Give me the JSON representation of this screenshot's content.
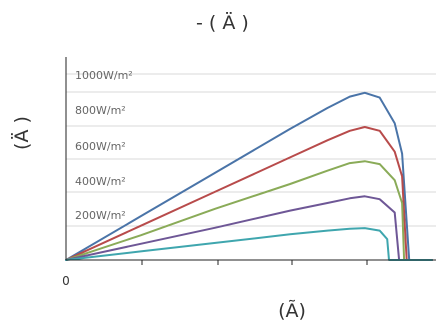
{
  "chart_data": {
    "type": "line",
    "title": "-           (    Ä )",
    "xlabel": "(Ã)",
    "ylabel": "(Ä )",
    "x_tick_labels": [
      "0"
    ],
    "xlim": [
      0,
      1.0
    ],
    "ylim": [
      0,
      1.0
    ],
    "grid": "horizontal",
    "series": [
      {
        "name": "1000W/m²",
        "color": "#4a74a8",
        "x": [
          0,
          0.2,
          0.4,
          0.6,
          0.7,
          0.76,
          0.8,
          0.84,
          0.88,
          0.9,
          0.9189,
          0.94,
          0.98
        ],
        "y": [
          0,
          0.23,
          0.46,
          0.69,
          0.8,
          0.86,
          0.88,
          0.855,
          0.72,
          0.56,
          0,
          0,
          0
        ]
      },
      {
        "name": "800W/m²",
        "color": "#b84b4b",
        "x": [
          0,
          0.2,
          0.4,
          0.6,
          0.7,
          0.76,
          0.8,
          0.84,
          0.88,
          0.9,
          0.9122,
          0.94,
          0.98
        ],
        "y": [
          0,
          0.18,
          0.36,
          0.54,
          0.63,
          0.68,
          0.7,
          0.68,
          0.57,
          0.44,
          0,
          0,
          0
        ]
      },
      {
        "name": "600W/m²",
        "color": "#8aab58",
        "x": [
          0,
          0.2,
          0.4,
          0.6,
          0.7,
          0.76,
          0.8,
          0.84,
          0.88,
          0.9,
          0.9054,
          0.94,
          0.98
        ],
        "y": [
          0,
          0.13,
          0.27,
          0.4,
          0.47,
          0.51,
          0.52,
          0.505,
          0.42,
          0.3,
          0,
          0,
          0
        ]
      },
      {
        "name": "400W/m²",
        "color": "#6e5796",
        "x": [
          0,
          0.2,
          0.4,
          0.6,
          0.7,
          0.76,
          0.8,
          0.84,
          0.88,
          0.8919,
          0.94,
          0.98
        ],
        "y": [
          0,
          0.085,
          0.17,
          0.26,
          0.3,
          0.325,
          0.335,
          0.32,
          0.25,
          0,
          0,
          0
        ]
      },
      {
        "name": "200W/m²",
        "color": "#3fa6ae",
        "x": [
          0,
          0.2,
          0.4,
          0.6,
          0.7,
          0.76,
          0.8,
          0.84,
          0.86,
          0.8649,
          0.94,
          0.98
        ],
        "y": [
          0,
          0.045,
          0.09,
          0.135,
          0.155,
          0.165,
          0.168,
          0.155,
          0.11,
          0,
          0,
          0
        ]
      }
    ]
  }
}
